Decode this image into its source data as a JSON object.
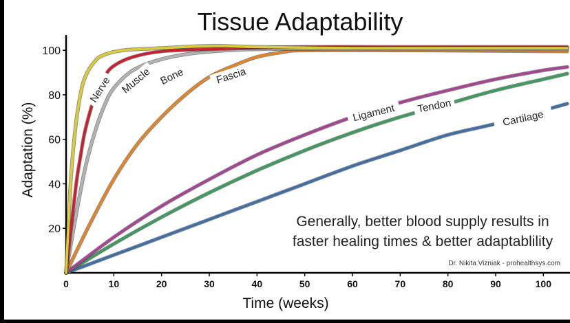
{
  "chart_data": {
    "type": "line",
    "title": "Tissue Adaptability",
    "xlabel": "Time (weeks)",
    "ylabel": "Adaptation (%)",
    "xlim": [
      0,
      105
    ],
    "ylim": [
      0,
      105
    ],
    "x_ticks": [
      "0",
      "10",
      "20",
      "30",
      "40",
      "50",
      "60",
      "70",
      "80",
      "90",
      "100"
    ],
    "y_ticks": [
      "20",
      "40",
      "60",
      "80",
      "100"
    ],
    "annotation": [
      "Generally, better blood supply results in",
      "faster healing times & better adaptablility"
    ],
    "credit": "Dr. Nikita Vizniak - prohealthsys.com",
    "series": [
      {
        "name": "Nerve",
        "color": "#d8cc3a",
        "points": [
          [
            0,
            0
          ],
          [
            1,
            42
          ],
          [
            2,
            66
          ],
          [
            3,
            80
          ],
          [
            4,
            88
          ],
          [
            6,
            95
          ],
          [
            8,
            98
          ],
          [
            12,
            100
          ],
          [
            20,
            101
          ],
          [
            30,
            102
          ],
          [
            40,
            101.5
          ],
          [
            60,
            101
          ],
          [
            80,
            101
          ],
          [
            105,
            101
          ]
        ]
      },
      {
        "name": "Muscle",
        "color": "#c8202e",
        "points": [
          [
            0,
            0
          ],
          [
            2,
            38
          ],
          [
            3,
            52
          ],
          [
            4,
            64
          ],
          [
            6,
            79
          ],
          [
            8,
            88
          ],
          [
            10,
            93
          ],
          [
            14,
            97
          ],
          [
            20,
            99.5
          ],
          [
            30,
            100.5
          ],
          [
            50,
            101.5
          ],
          [
            70,
            101.5
          ],
          [
            105,
            101.5
          ]
        ]
      },
      {
        "name": "Bone",
        "color": "#b2b2b2",
        "points": [
          [
            0,
            0
          ],
          [
            2,
            25
          ],
          [
            4,
            47
          ],
          [
            6,
            63
          ],
          [
            8,
            75
          ],
          [
            10,
            83
          ],
          [
            14,
            91
          ],
          [
            20,
            96
          ],
          [
            28,
            99
          ],
          [
            40,
            100.5
          ],
          [
            60,
            100.5
          ],
          [
            105,
            100.5
          ]
        ]
      },
      {
        "name": "Fascia",
        "color": "#e0852a",
        "points": [
          [
            0,
            0
          ],
          [
            5,
            22
          ],
          [
            10,
            42
          ],
          [
            15,
            58
          ],
          [
            20,
            70
          ],
          [
            25,
            80
          ],
          [
            30,
            88
          ],
          [
            35,
            93
          ],
          [
            40,
            97
          ],
          [
            45,
            99
          ],
          [
            50,
            100
          ],
          [
            70,
            100
          ],
          [
            105,
            99.5
          ]
        ]
      },
      {
        "name": "Ligament",
        "color": "#a64494",
        "points": [
          [
            0,
            0
          ],
          [
            10,
            16
          ],
          [
            20,
            30
          ],
          [
            30,
            42
          ],
          [
            40,
            53
          ],
          [
            50,
            62
          ],
          [
            60,
            70
          ],
          [
            70,
            76.5
          ],
          [
            80,
            82
          ],
          [
            90,
            87
          ],
          [
            100,
            91
          ],
          [
            105,
            92.5
          ]
        ]
      },
      {
        "name": "Tendon",
        "color": "#3e9a5e",
        "points": [
          [
            0,
            0
          ],
          [
            10,
            13
          ],
          [
            20,
            25
          ],
          [
            30,
            36
          ],
          [
            40,
            46
          ],
          [
            50,
            55
          ],
          [
            60,
            63
          ],
          [
            70,
            70
          ],
          [
            80,
            76
          ],
          [
            90,
            82
          ],
          [
            100,
            87
          ],
          [
            105,
            89.5
          ]
        ]
      },
      {
        "name": "Cartilage",
        "color": "#3f6fa8",
        "points": [
          [
            0,
            0
          ],
          [
            10,
            8
          ],
          [
            20,
            16
          ],
          [
            30,
            24
          ],
          [
            40,
            32
          ],
          [
            50,
            40
          ],
          [
            60,
            48
          ],
          [
            70,
            55
          ],
          [
            80,
            62
          ],
          [
            90,
            67
          ],
          [
            100,
            73
          ],
          [
            105,
            76
          ]
        ]
      }
    ]
  }
}
